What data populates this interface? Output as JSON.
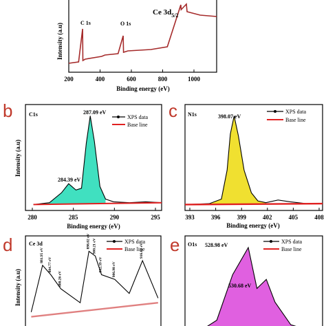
{
  "panels": {
    "a": {
      "letter": "",
      "ylabel": "Intensity (a.u)",
      "xlabel": "Binding energy (eV)",
      "xticks": [
        "200",
        "400",
        "600",
        "800",
        "1000"
      ],
      "ann_c1s": "C 1s",
      "ann_o1s": "O 1s",
      "ann_ce3d": "Ce 3d",
      "ann_ce3d_sub": "5/2"
    },
    "b": {
      "letter": "b",
      "corner": "C1s",
      "ylabel": "Intensity (a.u)",
      "xlabel": "Binding energy (eV)",
      "xticks": [
        "280",
        "285",
        "290",
        "295"
      ],
      "legend": [
        "XPS data",
        "Base line"
      ],
      "peaks": [
        "287.09 eV",
        "284.39 eV"
      ]
    },
    "c": {
      "letter": "c",
      "corner": "N1s",
      "xlabel": "Binding energy (eV)",
      "xticks": [
        "393",
        "396",
        "399",
        "402",
        "405",
        "408"
      ],
      "legend": [
        "XPS data",
        "Base line"
      ],
      "peaks": [
        "398.07 eV"
      ]
    },
    "d": {
      "letter": "d",
      "corner": "Ce 3d",
      "ylabel": "Intensity (a.u)",
      "legend": [
        "XPS data",
        "Base line"
      ],
      "peaks": [
        "881.95 eV",
        "884.77 eV",
        "888.26 eV",
        "898.02 eV",
        "900.21 eV",
        "902.39 eV",
        "906.98 eV",
        "916.61 eV"
      ]
    },
    "e": {
      "letter": "e",
      "corner": "O1s",
      "legend": [
        "XPS data",
        "Base line"
      ],
      "peaks": [
        "528.98 eV",
        "530.68 eV"
      ]
    }
  },
  "colors": {
    "survey": "#a52a2a",
    "c1s_fill": "#40e0c0",
    "n1s_fill": "#f0e030",
    "o1s_fill": "#e060e0",
    "base": "#e02020",
    "letter": "#c0392b"
  },
  "chart_data": [
    {
      "type": "line",
      "panel": "a",
      "xlabel": "Binding energy (eV)",
      "ylabel": "Intensity (a.u)",
      "xlim": [
        200,
        1100
      ],
      "x": [
        200,
        260,
        284,
        286,
        300,
        400,
        420,
        500,
        531,
        533,
        560,
        700,
        800,
        882,
        884,
        900,
        916,
        920,
        1000,
        1100
      ],
      "y": [
        10,
        12,
        60,
        14,
        16,
        20,
        22,
        24,
        50,
        26,
        28,
        30,
        34,
        95,
        88,
        92,
        96,
        85,
        80,
        78
      ]
    },
    {
      "type": "area",
      "panel": "b",
      "xlabel": "Binding energy (eV)",
      "ylabel": "Intensity (a.u)",
      "xlim": [
        279,
        296
      ],
      "series": [
        {
          "name": "XPS data",
          "x": [
            280,
            282,
            283.5,
            284.39,
            285.3,
            286,
            286.6,
            287.09,
            287.6,
            288.3,
            289,
            290,
            292,
            294,
            296
          ],
          "y": [
            2,
            4,
            15,
            25,
            18,
            20,
            70,
            100,
            72,
            22,
            8,
            5,
            4,
            5,
            4
          ]
        },
        {
          "name": "Base line",
          "x": [
            280,
            296
          ],
          "y": [
            2,
            4
          ]
        }
      ]
    },
    {
      "type": "area",
      "panel": "c",
      "xlabel": "Binding energy (eV)",
      "xlim": [
        392,
        409
      ],
      "series": [
        {
          "name": "XPS data",
          "x": [
            392,
            395,
            396.5,
            397.2,
            397.6,
            398.07,
            398.6,
            399.3,
            400.2,
            401,
            402,
            403.5,
            405,
            407,
            409
          ],
          "y": [
            2,
            3,
            8,
            40,
            80,
            100,
            78,
            40,
            15,
            6,
            4,
            7,
            5,
            3,
            3
          ]
        },
        {
          "name": "Base line",
          "x": [
            392,
            409
          ],
          "y": [
            2,
            3
          ]
        }
      ]
    },
    {
      "type": "line",
      "panel": "d",
      "ylabel": "Intensity (a.u)",
      "series": [
        {
          "name": "XPS data",
          "x": [
            878,
            881.95,
            884.77,
            888.26,
            895,
            898.02,
            900.21,
            902.39,
            906.98,
            912,
            916.61,
            922
          ],
          "y": [
            20,
            70,
            60,
            45,
            30,
            85,
            80,
            60,
            55,
            40,
            75,
            35
          ]
        },
        {
          "name": "Base line",
          "x": [
            878,
            922
          ],
          "y": [
            15,
            30
          ]
        }
      ]
    },
    {
      "type": "area",
      "panel": "e",
      "series": [
        {
          "name": "XPS data",
          "x": [
            524,
            526,
            527.5,
            528.98,
            529.8,
            530.68,
            531.5,
            533,
            535
          ],
          "y": [
            5,
            20,
            70,
            100,
            55,
            65,
            40,
            15,
            8
          ]
        },
        {
          "name": "Base line",
          "x": [
            524,
            535
          ],
          "y": [
            3,
            5
          ]
        }
      ]
    }
  ]
}
